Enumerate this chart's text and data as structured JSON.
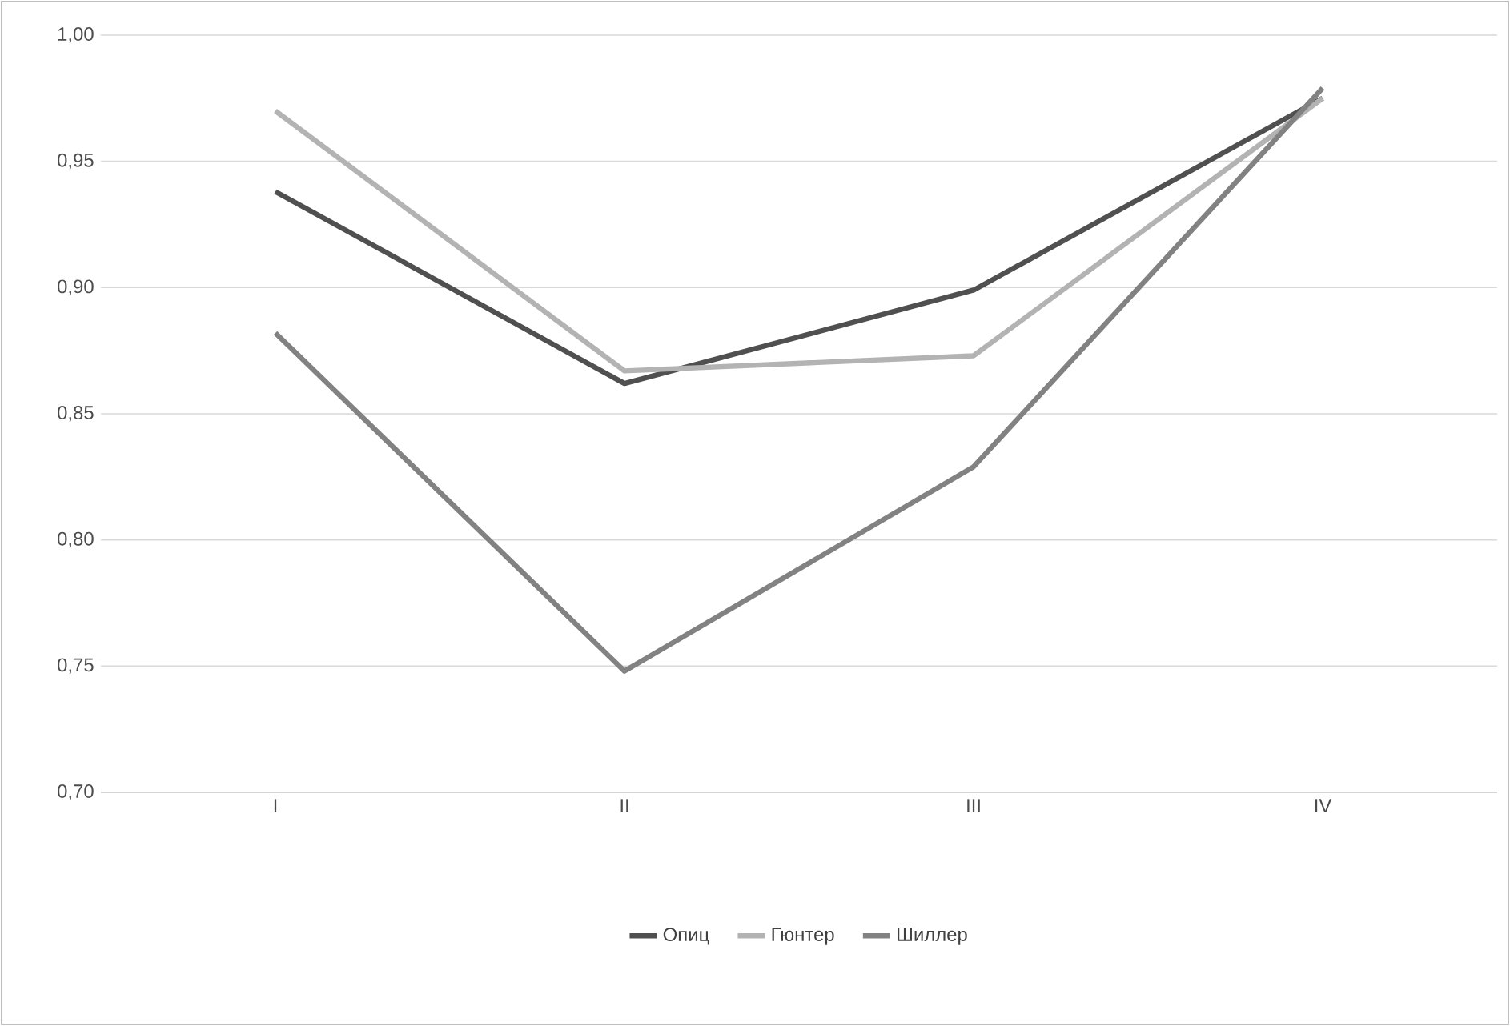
{
  "chart_data": {
    "type": "line",
    "categories": [
      "I",
      "II",
      "III",
      "IV"
    ],
    "series": [
      {
        "name": "Опиц",
        "color": "#505050",
        "values": [
          0.938,
          0.862,
          0.899,
          0.975
        ]
      },
      {
        "name": "Гюнтер",
        "color": "#b3b3b3",
        "values": [
          0.97,
          0.867,
          0.873,
          0.975
        ]
      },
      {
        "name": "Шиллер",
        "color": "#828282",
        "values": [
          0.882,
          0.748,
          0.829,
          0.979
        ]
      }
    ],
    "ylim": [
      0.7,
      1.0
    ],
    "yticks": [
      {
        "value": 0.7,
        "label": "0,70"
      },
      {
        "value": 0.75,
        "label": "0,75"
      },
      {
        "value": 0.8,
        "label": "0,80"
      },
      {
        "value": 0.85,
        "label": "0,85"
      },
      {
        "value": 0.9,
        "label": "0,90"
      },
      {
        "value": 0.95,
        "label": "0,95"
      },
      {
        "value": 1.0,
        "label": "1,00"
      }
    ],
    "grid": "y",
    "legend": "bottom",
    "marker": "none",
    "line_style": "solid"
  }
}
